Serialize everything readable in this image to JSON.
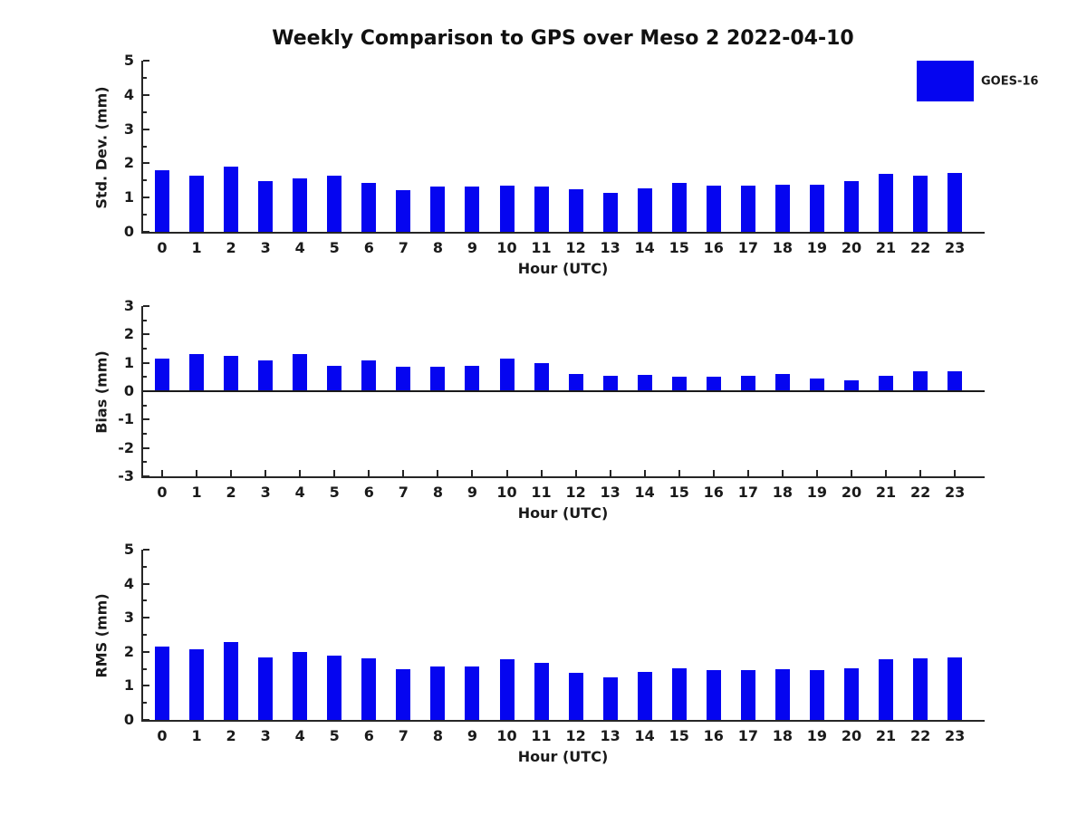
{
  "title": "Weekly Comparison to GPS over Meso 2 2022-04-10",
  "legend": {
    "label": "GOES-16"
  },
  "colors": {
    "bar": "#0505f0",
    "axis": "#262626",
    "text": "#1a1a1a"
  },
  "chart_data": [
    {
      "type": "bar",
      "ylabel": "Std. Dev. (mm)",
      "xlabel": "Hour (UTC)",
      "ylim": [
        0,
        5
      ],
      "ytick_step": 1,
      "yminor_step": 0.5,
      "legend_entry": "GOES-16",
      "categories": [
        "0",
        "1",
        "2",
        "3",
        "4",
        "5",
        "6",
        "7",
        "8",
        "9",
        "10",
        "11",
        "12",
        "13",
        "14",
        "15",
        "16",
        "17",
        "18",
        "19",
        "20",
        "21",
        "22",
        "23"
      ],
      "values": [
        1.8,
        1.65,
        1.9,
        1.47,
        1.55,
        1.65,
        1.42,
        1.23,
        1.33,
        1.33,
        1.36,
        1.33,
        1.25,
        1.14,
        1.27,
        1.43,
        1.35,
        1.34,
        1.38,
        1.37,
        1.48,
        1.69,
        1.65,
        1.71
      ]
    },
    {
      "type": "bar",
      "ylabel": "Bias (mm)",
      "xlabel": "Hour (UTC)",
      "ylim": [
        -3,
        3
      ],
      "ytick_step": 1,
      "yminor_step": 0.5,
      "legend_entry": "GOES-16",
      "categories": [
        "0",
        "1",
        "2",
        "3",
        "4",
        "5",
        "6",
        "7",
        "8",
        "9",
        "10",
        "11",
        "12",
        "13",
        "14",
        "15",
        "16",
        "17",
        "18",
        "19",
        "20",
        "21",
        "22",
        "23"
      ],
      "values": [
        1.15,
        1.3,
        1.25,
        1.1,
        1.3,
        0.9,
        1.1,
        0.85,
        0.85,
        0.88,
        1.15,
        1.0,
        0.62,
        0.55,
        0.56,
        0.5,
        0.5,
        0.55,
        0.6,
        0.45,
        0.37,
        0.55,
        0.7,
        0.7
      ]
    },
    {
      "type": "bar",
      "ylabel": "RMS (mm)",
      "xlabel": "Hour (UTC)",
      "ylim": [
        0,
        5
      ],
      "ytick_step": 1,
      "yminor_step": 0.5,
      "legend_entry": "GOES-16",
      "categories": [
        "0",
        "1",
        "2",
        "3",
        "4",
        "5",
        "6",
        "7",
        "8",
        "9",
        "10",
        "11",
        "12",
        "13",
        "14",
        "15",
        "16",
        "17",
        "18",
        "19",
        "20",
        "21",
        "22",
        "23"
      ],
      "values": [
        2.15,
        2.08,
        2.28,
        1.83,
        2.0,
        1.88,
        1.8,
        1.48,
        1.58,
        1.58,
        1.78,
        1.67,
        1.38,
        1.26,
        1.4,
        1.52,
        1.45,
        1.45,
        1.5,
        1.45,
        1.51,
        1.78,
        1.8,
        1.84
      ]
    }
  ]
}
